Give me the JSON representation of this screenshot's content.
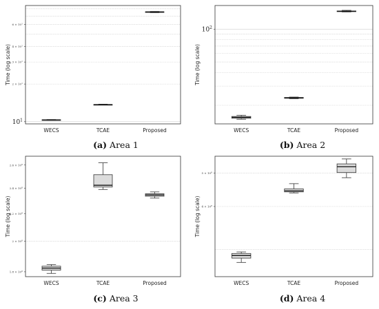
{
  "chart_data": [
    {
      "type": "box",
      "caption_letter": "(a)",
      "caption_text": " Area 1",
      "ylabel": "Time (log scale)",
      "yscale": "log",
      "ylim": [
        9.6,
        85
      ],
      "grid": "horizontal",
      "categories": [
        "WECS",
        "TCAE",
        "Proposed"
      ],
      "yticks": [
        {
          "value": 10,
          "label": "10",
          "sup": "1",
          "big": true
        },
        {
          "value": 20,
          "label": "2 × 10",
          "sup": "1",
          "big": false
        },
        {
          "value": 30,
          "label": "3 × 10",
          "sup": "1",
          "big": false
        },
        {
          "value": 40,
          "label": "4 × 10",
          "sup": "1",
          "big": false
        },
        {
          "value": 60,
          "label": "6 × 10",
          "sup": "1",
          "big": false
        }
      ],
      "boxes": [
        {
          "min": 10.25,
          "q1": 10.3,
          "median": 10.32,
          "q3": 10.36,
          "max": 10.4
        },
        {
          "min": 13.6,
          "q1": 13.65,
          "median": 13.68,
          "q3": 13.72,
          "max": 13.8
        },
        {
          "min": 74.5,
          "q1": 75.0,
          "median": 75.4,
          "q3": 75.8,
          "max": 76.2
        }
      ]
    },
    {
      "type": "box",
      "caption_letter": "(b)",
      "caption_text": " Area 2",
      "ylabel": "Time (log scale)",
      "yscale": "log",
      "ylim": [
        13.5,
        165
      ],
      "grid": "horizontal",
      "categories": [
        "WECS",
        "TCAE",
        "Proposed"
      ],
      "yticks": [
        {
          "value": 100,
          "label": "10",
          "sup": "2",
          "big": true
        }
      ],
      "boxes": [
        {
          "min": 14.9,
          "q1": 15.2,
          "median": 15.5,
          "q3": 15.8,
          "max": 16.2
        },
        {
          "min": 23.0,
          "q1": 23.2,
          "median": 23.4,
          "q3": 23.6,
          "max": 23.8
        },
        {
          "min": 144,
          "q1": 145,
          "median": 146,
          "q3": 147,
          "max": 149
        }
      ]
    },
    {
      "type": "box",
      "caption_letter": "(c)",
      "caption_text": " Area 3",
      "ylabel": "Time (log scale)",
      "yscale": "log",
      "ylim": [
        1.77,
        2.68
      ],
      "grid": "horizontal",
      "categories": [
        "WECS",
        "TCAE",
        "Proposed"
      ],
      "yticks": [
        {
          "value": 1.8,
          "label": "1.8 × 10",
          "sup": "0",
          "big": false
        },
        {
          "value": 2.0,
          "label": "2 × 10",
          "sup": "0",
          "big": false
        },
        {
          "value": 2.2,
          "label": "2.2 × 10",
          "sup": "0",
          "big": false
        },
        {
          "value": 2.4,
          "label": "2.4 × 10",
          "sup": "0",
          "big": false
        },
        {
          "value": 2.6,
          "label": "2.6 × 10",
          "sup": "0",
          "big": false
        }
      ],
      "boxes": [
        {
          "min": 1.79,
          "q1": 1.81,
          "median": 1.823,
          "q3": 1.835,
          "max": 1.845
        },
        {
          "min": 2.39,
          "q1": 2.41,
          "median": 2.425,
          "q3": 2.515,
          "max": 2.62
        },
        {
          "min": 2.32,
          "q1": 2.335,
          "median": 2.345,
          "q3": 2.355,
          "max": 2.37
        }
      ]
    },
    {
      "type": "box",
      "caption_letter": "(d)",
      "caption_text": " Area 4",
      "ylabel": "Time (log scale)",
      "yscale": "log",
      "ylim": [
        2.5,
        5.6
      ],
      "grid": "horizontal",
      "categories": [
        "WECS",
        "TCAE",
        "Proposed"
      ],
      "yticks": [
        {
          "value": 4,
          "label": "4 × 10",
          "sup": "0",
          "big": false
        },
        {
          "value": 5,
          "label": "5 × 10",
          "sup": "0",
          "big": false
        }
      ],
      "boxes": [
        {
          "min": 2.75,
          "q1": 2.83,
          "median": 2.88,
          "q3": 2.92,
          "max": 2.95
        },
        {
          "min": 4.38,
          "q1": 4.41,
          "median": 4.44,
          "q3": 4.5,
          "max": 4.66
        },
        {
          "min": 4.85,
          "q1": 5.02,
          "median": 5.22,
          "q3": 5.32,
          "max": 5.5
        }
      ]
    }
  ]
}
